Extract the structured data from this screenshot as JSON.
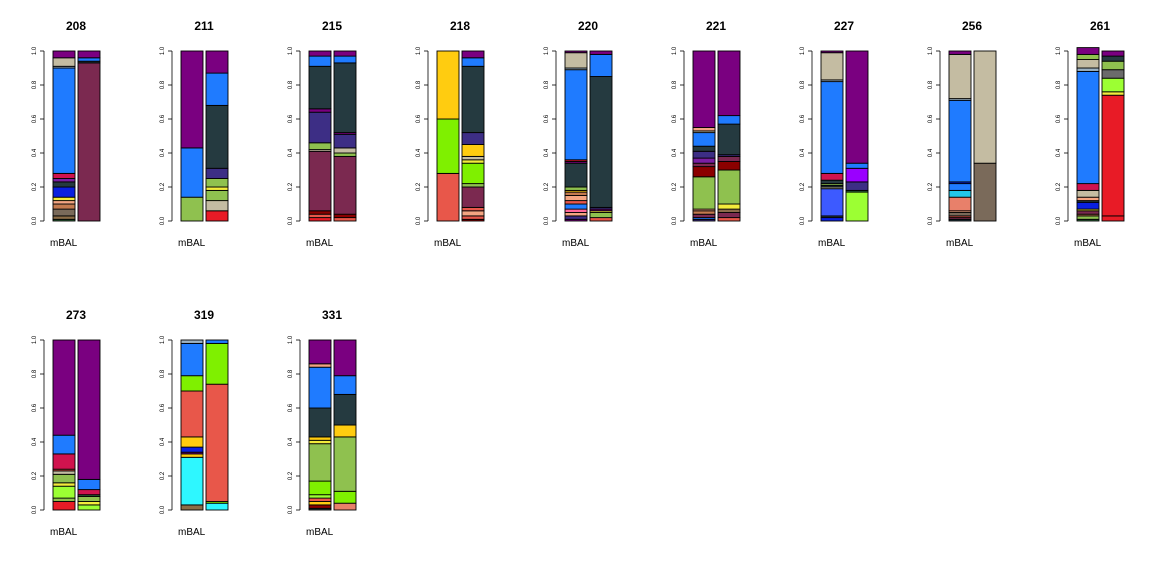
{
  "figure": {
    "background": "#ffffff"
  },
  "chart_data": {
    "type": "bar",
    "stacked": true,
    "normalized": true,
    "ylim": [
      0,
      1
    ],
    "yticks": [
      "0.0",
      "0.2",
      "0.4",
      "0.6",
      "0.8",
      "1.0"
    ],
    "bar_outline": "#000000",
    "panels": [
      {
        "title": "208",
        "xlabel": "mBAL",
        "bars": [
          [
            [
              0.01,
              "#2f6b3a"
            ],
            [
              0.02,
              "#8c6d46"
            ],
            [
              0.04,
              "#7a6a5a"
            ],
            [
              0.03,
              "#c47a4f"
            ],
            [
              0.02,
              "#f4a582"
            ],
            [
              0.02,
              "#f3ec3c"
            ],
            [
              0.06,
              "#0a20e0"
            ],
            [
              0.03,
              "#253a40"
            ],
            [
              0.02,
              "#7b1fa2"
            ],
            [
              0.03,
              "#d0134e"
            ],
            [
              0.62,
              "#1f7bff"
            ],
            [
              0.01,
              "#9db3c4"
            ],
            [
              0.05,
              "#c4bca2"
            ],
            [
              0.04,
              "#7a0080"
            ]
          ],
          [
            [
              0.93,
              "#7b2950"
            ],
            [
              0.01,
              "#253a40"
            ],
            [
              0.02,
              "#1f7bff"
            ],
            [
              0.04,
              "#7a0080"
            ]
          ]
        ]
      },
      {
        "title": "211",
        "xlabel": "mBAL",
        "bars": [
          [
            [
              0.14,
              "#8fc14f"
            ],
            [
              0.29,
              "#1f7bff"
            ],
            [
              0.57,
              "#7a0080"
            ]
          ],
          [
            [
              0.06,
              "#e81b26"
            ],
            [
              0.06,
              "#c4bca2"
            ],
            [
              0.06,
              "#8fc14f"
            ],
            [
              0.02,
              "#f3ec3c"
            ],
            [
              0.05,
              "#8fc14f"
            ],
            [
              0.06,
              "#3d2e85"
            ],
            [
              0.37,
              "#253a40"
            ],
            [
              0.19,
              "#1f7bff"
            ],
            [
              0.13,
              "#7a0080"
            ]
          ]
        ]
      },
      {
        "title": "215",
        "xlabel": "mBAL",
        "bars": [
          [
            [
              0.02,
              "#e81b26"
            ],
            [
              0.02,
              "#e8574a"
            ],
            [
              0.02,
              "#8b0000"
            ],
            [
              0.35,
              "#7b2950"
            ],
            [
              0.01,
              "#c4bca2"
            ],
            [
              0.04,
              "#8fc14f"
            ],
            [
              0.18,
              "#3d2e85"
            ],
            [
              0.02,
              "#7a0080"
            ],
            [
              0.25,
              "#253a40"
            ],
            [
              0.06,
              "#1f7bff"
            ],
            [
              0.03,
              "#7a0080"
            ]
          ],
          [
            [
              0.02,
              "#e8574a"
            ],
            [
              0.02,
              "#8b0000"
            ],
            [
              0.34,
              "#7b2950"
            ],
            [
              0.02,
              "#8fc14f"
            ],
            [
              0.03,
              "#c4bca2"
            ],
            [
              0.08,
              "#3d2e85"
            ],
            [
              0.01,
              "#7a0080"
            ],
            [
              0.41,
              "#253a40"
            ],
            [
              0.04,
              "#1f7bff"
            ],
            [
              0.03,
              "#7a0080"
            ]
          ]
        ]
      },
      {
        "title": "218",
        "xlabel": "mBAL",
        "bars": [
          [
            [
              0.28,
              "#e8574a"
            ],
            [
              0.32,
              "#7ff000"
            ],
            [
              0.4,
              "#ffcc10"
            ]
          ],
          [
            [
              0.01,
              "#8b0000"
            ],
            [
              0.02,
              "#e8574a"
            ],
            [
              0.03,
              "#f4a582"
            ],
            [
              0.02,
              "#e8574a"
            ],
            [
              0.12,
              "#7b2950"
            ],
            [
              0.02,
              "#8fc14f"
            ],
            [
              0.12,
              "#7ff000"
            ],
            [
              0.02,
              "#f3ec3c"
            ],
            [
              0.02,
              "#c4bca2"
            ],
            [
              0.07,
              "#ffcc10"
            ],
            [
              0.07,
              "#3d2e85"
            ],
            [
              0.39,
              "#253a40"
            ],
            [
              0.05,
              "#1f7bff"
            ],
            [
              0.04,
              "#7a0080"
            ]
          ]
        ]
      },
      {
        "title": "220",
        "xlabel": "mBAL",
        "bars": [
          [
            [
              0.01,
              "#7a0080"
            ],
            [
              0.02,
              "#3d2e85"
            ],
            [
              0.02,
              "#f4a582"
            ],
            [
              0.02,
              "#ff6699"
            ],
            [
              0.03,
              "#1f7bff"
            ],
            [
              0.02,
              "#e8574a"
            ],
            [
              0.03,
              "#f4a582"
            ],
            [
              0.02,
              "#c47a4f"
            ],
            [
              0.01,
              "#ffcc10"
            ],
            [
              0.02,
              "#8fc14f"
            ],
            [
              0.14,
              "#253a40"
            ],
            [
              0.01,
              "#7a0080"
            ],
            [
              0.01,
              "#e81b26"
            ],
            [
              0.53,
              "#1f7bff"
            ],
            [
              0.01,
              "#9db3c4"
            ],
            [
              0.09,
              "#c4bca2"
            ],
            [
              0.01,
              "#7a0080"
            ]
          ],
          [
            [
              0.02,
              "#e8574a"
            ],
            [
              0.03,
              "#8fc14f"
            ],
            [
              0.01,
              "#f3ec3c"
            ],
            [
              0.01,
              "#7a0080"
            ],
            [
              0.01,
              "#3d2e85"
            ],
            [
              0.77,
              "#253a40"
            ],
            [
              0.13,
              "#1f7bff"
            ],
            [
              0.02,
              "#7a0080"
            ]
          ]
        ]
      },
      {
        "title": "221",
        "xlabel": "mBAL",
        "bars": [
          [
            [
              0.01,
              "#3d2e85"
            ],
            [
              0.01,
              "#1f7bff"
            ],
            [
              0.02,
              "#7b2950"
            ],
            [
              0.02,
              "#c47a4f"
            ],
            [
              0.01,
              "#f4a582"
            ],
            [
              0.19,
              "#8fc14f"
            ],
            [
              0.06,
              "#8b0000"
            ],
            [
              0.02,
              "#7b2950"
            ],
            [
              0.03,
              "#7b1fa2"
            ],
            [
              0.04,
              "#3d2e85"
            ],
            [
              0.03,
              "#253a40"
            ],
            [
              0.08,
              "#1f7bff"
            ],
            [
              0.01,
              "#c4bca2"
            ],
            [
              0.02,
              "#f4a582"
            ],
            [
              0.45,
              "#7a0080"
            ]
          ],
          [
            [
              0.02,
              "#e8574a"
            ],
            [
              0.03,
              "#7b2950"
            ],
            [
              0.02,
              "#8b6b4a"
            ],
            [
              0.03,
              "#f3ec3c"
            ],
            [
              0.2,
              "#8fc14f"
            ],
            [
              0.05,
              "#8b0000"
            ],
            [
              0.03,
              "#7b2950"
            ],
            [
              0.01,
              "#3d2e85"
            ],
            [
              0.18,
              "#253a40"
            ],
            [
              0.05,
              "#1f7bff"
            ],
            [
              0.38,
              "#7a0080"
            ]
          ]
        ]
      },
      {
        "title": "227",
        "xlabel": "mBAL",
        "bars": [
          [
            [
              0.02,
              "#0a20e0"
            ],
            [
              0.01,
              "#253a40"
            ],
            [
              0.16,
              "#3d5aff"
            ],
            [
              0.01,
              "#c4bca2"
            ],
            [
              0.01,
              "#253a40"
            ],
            [
              0.01,
              "#8fc14f"
            ],
            [
              0.02,
              "#253a40"
            ],
            [
              0.04,
              "#d0134e"
            ],
            [
              0.54,
              "#1f7bff"
            ],
            [
              0.01,
              "#9db3c4"
            ],
            [
              0.16,
              "#c4bca2"
            ],
            [
              0.01,
              "#7a0080"
            ]
          ],
          [
            [
              0.17,
              "#9cff33"
            ],
            [
              0.01,
              "#2f6b3a"
            ],
            [
              0.05,
              "#3d2e85"
            ],
            [
              0.08,
              "#9a00ff"
            ],
            [
              0.03,
              "#1f7bff"
            ],
            [
              0.66,
              "#7a0080"
            ]
          ]
        ]
      },
      {
        "title": "256",
        "xlabel": "mBAL",
        "bars": [
          [
            [
              0.01,
              "#253a40"
            ],
            [
              0.01,
              "#7b2950"
            ],
            [
              0.01,
              "#e8574a"
            ],
            [
              0.02,
              "#7a6a5a"
            ],
            [
              0.01,
              "#f4a582"
            ],
            [
              0.08,
              "#e8806a"
            ],
            [
              0.04,
              "#22c7e8"
            ],
            [
              0.04,
              "#1f7bff"
            ],
            [
              0.01,
              "#0a20e0"
            ],
            [
              0.48,
              "#1f7bff"
            ],
            [
              0.01,
              "#9db3c4"
            ],
            [
              0.26,
              "#c4bca2"
            ],
            [
              0.02,
              "#7a0080"
            ]
          ],
          [
            [
              0.34,
              "#7a6a5a"
            ],
            [
              0.66,
              "#c4bca2"
            ]
          ]
        ]
      },
      {
        "title": "261",
        "xlabel": "mBAL",
        "bars": [
          [
            [
              0.01,
              "#2f6b3a"
            ],
            [
              0.02,
              "#8fc14f"
            ],
            [
              0.01,
              "#c47a4f"
            ],
            [
              0.02,
              "#7b2950"
            ],
            [
              0.01,
              "#f3ec3c"
            ],
            [
              0.04,
              "#0a20e0"
            ],
            [
              0.01,
              "#253a40"
            ],
            [
              0.02,
              "#f4a582"
            ],
            [
              0.04,
              "#c4bca2"
            ],
            [
              0.04,
              "#d0134e"
            ],
            [
              0.66,
              "#1f7bff"
            ],
            [
              0.02,
              "#9db3c4"
            ],
            [
              0.05,
              "#c4bca2"
            ],
            [
              0.03,
              "#8fc14f"
            ],
            [
              0.04,
              "#7a0080"
            ]
          ],
          [
            [
              0.03,
              "#e81b26"
            ],
            [
              0.71,
              "#e81b26"
            ],
            [
              0.02,
              "#f3ec3c"
            ],
            [
              0.08,
              "#9cff33"
            ],
            [
              0.05,
              "#6b6b6b"
            ],
            [
              0.05,
              "#8fc14f"
            ],
            [
              0.03,
              "#253a40"
            ],
            [
              0.03,
              "#7a0080"
            ]
          ]
        ]
      },
      {
        "title": "273",
        "xlabel": "mBAL",
        "bars": [
          [
            [
              0.05,
              "#e81b26"
            ],
            [
              0.02,
              "#8fc14f"
            ],
            [
              0.07,
              "#9cff33"
            ],
            [
              0.02,
              "#f3ec3c"
            ],
            [
              0.05,
              "#8fc14f"
            ],
            [
              0.02,
              "#c4bca2"
            ],
            [
              0.01,
              "#e8574a"
            ],
            [
              0.09,
              "#d0134e"
            ],
            [
              0.11,
              "#1f7bff"
            ],
            [
              0.56,
              "#7a0080"
            ]
          ],
          [
            [
              0.03,
              "#9cff33"
            ],
            [
              0.02,
              "#f3ec3c"
            ],
            [
              0.03,
              "#8fc14f"
            ],
            [
              0.01,
              "#2f6b3a"
            ],
            [
              0.03,
              "#d0134e"
            ],
            [
              0.06,
              "#1f7bff"
            ],
            [
              0.82,
              "#7a0080"
            ]
          ]
        ]
      },
      {
        "title": "319",
        "xlabel": "mBAL",
        "bars": [
          [
            [
              0.03,
              "#8c6d46"
            ],
            [
              0.28,
              "#2ef7ff"
            ],
            [
              0.02,
              "#ffcc10"
            ],
            [
              0.01,
              "#7a0080"
            ],
            [
              0.03,
              "#0a20e0"
            ],
            [
              0.06,
              "#ffcc10"
            ],
            [
              0.27,
              "#e8574a"
            ],
            [
              0.09,
              "#7ff000"
            ],
            [
              0.19,
              "#1f7bff"
            ],
            [
              0.02,
              "#9db3c4"
            ]
          ],
          [
            [
              0.04,
              "#2ef7ff"
            ],
            [
              0.01,
              "#7ff000"
            ],
            [
              0.69,
              "#e8574a"
            ],
            [
              0.24,
              "#7ff000"
            ],
            [
              0.02,
              "#1f7bff"
            ]
          ]
        ]
      },
      {
        "title": "331",
        "xlabel": "mBAL",
        "bars": [
          [
            [
              0.01,
              "#253a40"
            ],
            [
              0.02,
              "#8b0000"
            ],
            [
              0.02,
              "#ffcc10"
            ],
            [
              0.02,
              "#e8574a"
            ],
            [
              0.02,
              "#9cff33"
            ],
            [
              0.08,
              "#7ff000"
            ],
            [
              0.22,
              "#8fc14f"
            ],
            [
              0.02,
              "#f3ec3c"
            ],
            [
              0.02,
              "#ffcc10"
            ],
            [
              0.17,
              "#253a40"
            ],
            [
              0.24,
              "#1f7bff"
            ],
            [
              0.02,
              "#f4a582"
            ],
            [
              0.14,
              "#7a0080"
            ]
          ],
          [
            [
              0.04,
              "#e8806a"
            ],
            [
              0.07,
              "#7ff000"
            ],
            [
              0.32,
              "#8fc14f"
            ],
            [
              0.07,
              "#ffcc10"
            ],
            [
              0.18,
              "#253a40"
            ],
            [
              0.11,
              "#1f7bff"
            ],
            [
              0.21,
              "#7a0080"
            ]
          ]
        ]
      }
    ]
  }
}
